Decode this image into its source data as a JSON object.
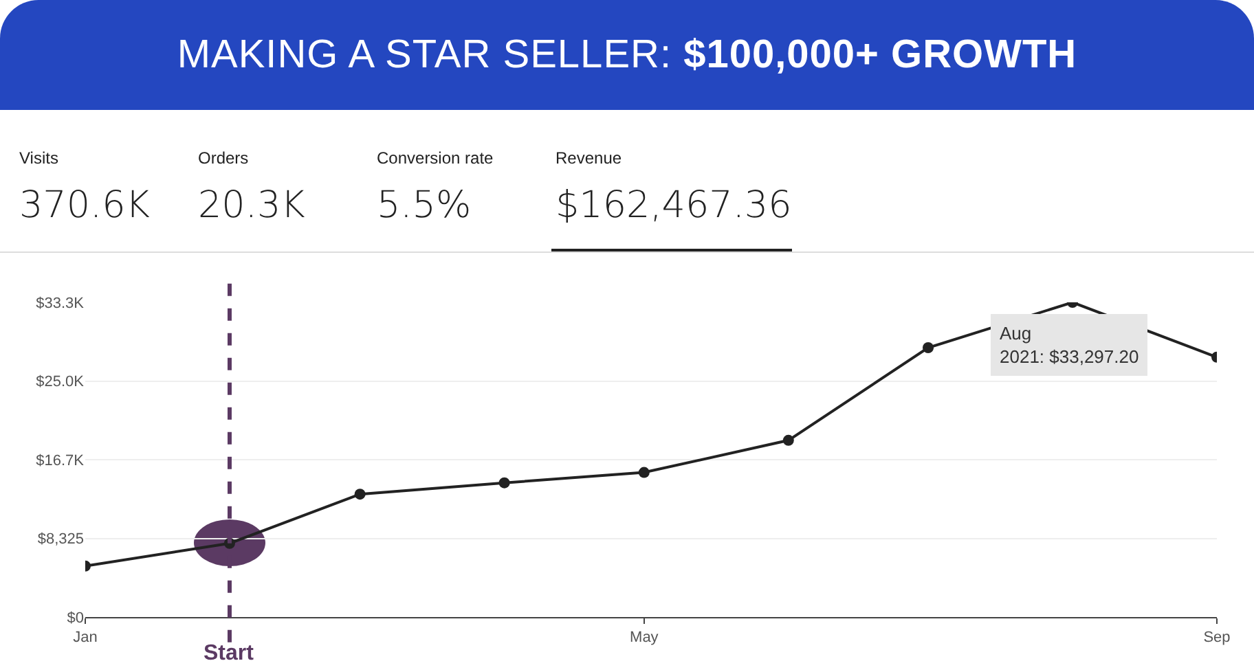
{
  "chart_data": {
    "type": "line",
    "title": "MAKING A STAR SELLER: $100,000+ GROWTH",
    "x": [
      "2021-01",
      "2021-02",
      "2021-03",
      "2021-04",
      "2021-05",
      "2021-06",
      "2021-07",
      "2021-08",
      "2021-09"
    ],
    "series": [
      {
        "color": "#222222",
        "values": [
          5400,
          7800,
          13000,
          14200,
          15300,
          18700,
          28500,
          33297.2,
          27500
        ]
      }
    ],
    "xlim": [
      "2021-01",
      "2021-09"
    ],
    "xticks": [
      {
        "value": "2021-01",
        "label": "Jan"
      },
      {
        "value": "2021-05",
        "label": "May"
      },
      {
        "value": "2021-09",
        "label": "Sep"
      }
    ],
    "ylim": [
      0,
      33300
    ],
    "yticks": [
      {
        "value": 0,
        "label": "$0"
      },
      {
        "value": 8325,
        "label": "$8,325"
      },
      {
        "value": 16650,
        "label": "$16.7K"
      },
      {
        "value": 24975,
        "label": "$25.0K"
      },
      {
        "value": 33300,
        "label": "$33.3K"
      }
    ],
    "grid": "y",
    "legend": false,
    "marker": "circle",
    "line_style": "solid",
    "ref_lines": [
      {
        "axis": "x",
        "value": "2021-02",
        "label": "Start",
        "color": "#5b3a63",
        "line_style": "dashed"
      }
    ],
    "annotations": [
      "Visits",
      "370.6K",
      "Orders",
      "20.3K",
      "Conversion rate",
      "5.5%",
      "Revenue",
      "$162,467.36",
      {
        "text": "Aug\n2021: $33,297.20",
        "x": "2021-08",
        "y": 33297.2
      }
    ]
  }
}
